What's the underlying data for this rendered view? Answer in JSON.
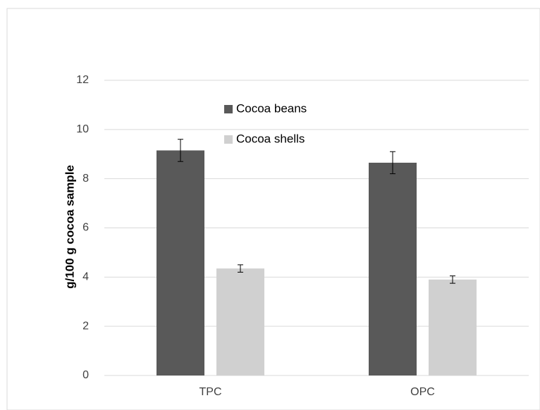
{
  "chart_data": {
    "type": "bar",
    "y_label": "g/100 g cocoa sample",
    "categories": [
      "TPC",
      "OPC"
    ],
    "series": [
      {
        "name": "Cocoa beans",
        "color": "#595959",
        "values": [
          9.15,
          8.65
        ],
        "errors": [
          0.45,
          0.45
        ]
      },
      {
        "name": "Cocoa shells",
        "color": "#d0d0d0",
        "values": [
          4.35,
          3.9
        ],
        "errors": [
          0.15,
          0.15
        ]
      }
    ],
    "ylim": [
      0,
      12
    ],
    "yticks": [
      0,
      2,
      4,
      6,
      8,
      10,
      12
    ],
    "grid": true,
    "legend": "top-left"
  }
}
